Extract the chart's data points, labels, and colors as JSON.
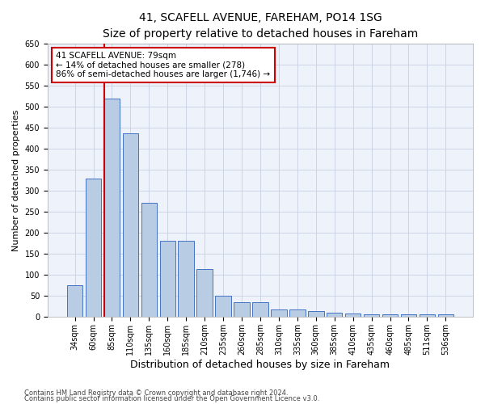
{
  "title": "41, SCAFELL AVENUE, FAREHAM, PO14 1SG",
  "subtitle": "Size of property relative to detached houses in Fareham",
  "xlabel": "Distribution of detached houses by size in Fareham",
  "ylabel": "Number of detached properties",
  "footnote1": "Contains HM Land Registry data © Crown copyright and database right 2024.",
  "footnote2": "Contains public sector information licensed under the Open Government Licence v3.0.",
  "categories": [
    "34sqm",
    "60sqm",
    "85sqm",
    "110sqm",
    "135sqm",
    "160sqm",
    "185sqm",
    "210sqm",
    "235sqm",
    "260sqm",
    "285sqm",
    "310sqm",
    "335sqm",
    "360sqm",
    "385sqm",
    "410sqm",
    "435sqm",
    "460sqm",
    "485sqm",
    "511sqm",
    "536sqm"
  ],
  "values": [
    75,
    328,
    518,
    437,
    271,
    181,
    181,
    113,
    50,
    34,
    35,
    18,
    17,
    13,
    10,
    8,
    5,
    5,
    5,
    5,
    5
  ],
  "bar_color": "#b8cce4",
  "bar_edge_color": "#4472c4",
  "annotation_text_line1": "41 SCAFELL AVENUE: 79sqm",
  "annotation_text_line2": "← 14% of detached houses are smaller (278)",
  "annotation_text_line3": "86% of semi-detached houses are larger (1,746) →",
  "annotation_box_color": "#ffffff",
  "annotation_box_edge": "#cc0000",
  "red_line_color": "#cc0000",
  "ylim": [
    0,
    650
  ],
  "yticks": [
    0,
    50,
    100,
    150,
    200,
    250,
    300,
    350,
    400,
    450,
    500,
    550,
    600,
    650
  ],
  "title_fontsize": 10,
  "axis_label_fontsize": 8,
  "tick_fontsize": 7,
  "annotation_fontsize": 7.5,
  "footnote_fontsize": 6
}
